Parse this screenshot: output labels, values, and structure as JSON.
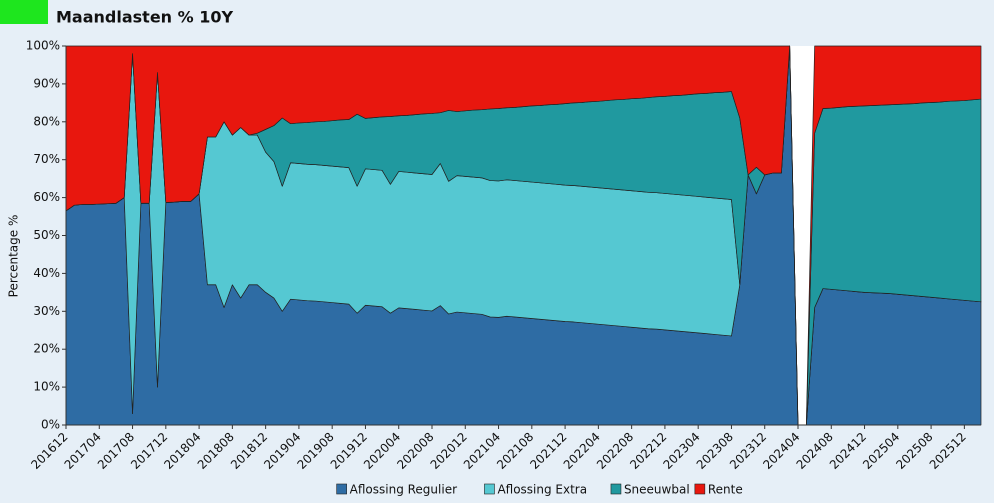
{
  "chart_data": {
    "type": "stacked_area",
    "title": "Maandlasten % 10Y",
    "ylabel": "Percentage %",
    "categories": [
      "201612",
      null,
      null,
      null,
      "201704",
      null,
      null,
      null,
      "201708",
      null,
      null,
      null,
      "201712",
      null,
      null,
      null,
      "201804",
      null,
      null,
      null,
      "201808",
      null,
      null,
      null,
      "201812",
      null,
      null,
      null,
      "201904",
      null,
      null,
      null,
      "201908",
      null,
      null,
      null,
      "201912",
      null,
      null,
      null,
      "202004",
      null,
      null,
      null,
      "202008",
      null,
      null,
      null,
      "202012",
      null,
      null,
      null,
      "202104",
      null,
      null,
      null,
      "202108",
      null,
      null,
      null,
      "202112",
      null,
      null,
      null,
      "202204",
      null,
      null,
      null,
      "202208",
      null,
      null,
      null,
      "202212",
      null,
      null,
      null,
      "202304",
      null,
      null,
      null,
      "202308",
      null,
      null,
      null,
      "202312",
      null,
      null,
      null,
      "202404",
      null,
      null,
      null,
      "202408",
      null,
      null,
      null,
      "202412",
      null,
      null,
      null,
      "202504",
      null,
      null,
      null,
      "202508",
      null,
      null,
      null,
      "202512",
      null,
      null
    ],
    "series": [
      {
        "name": "Aflossing Regulier",
        "color": "#2e6ca4",
        "values": [
          56.5,
          58,
          58.2,
          58.2,
          58.3,
          58.4,
          58.5,
          60,
          3,
          58.5,
          58.5,
          10,
          58.7,
          58.8,
          59,
          59,
          61,
          37,
          37,
          31,
          37,
          33.5,
          37,
          37,
          35,
          33.5,
          30,
          33.2,
          33.0,
          32.8,
          32.7,
          32.5,
          32.3,
          32.1,
          31.9,
          29.5,
          31.6,
          31.4,
          31.2,
          29.5,
          30.9,
          30.7,
          30.5,
          30.3,
          30.1,
          31.5,
          29.3,
          29.8,
          29.6,
          29.4,
          29.2,
          28.5,
          28.4,
          28.7,
          28.5,
          28.3,
          28.1,
          27.9,
          27.7,
          27.5,
          27.3,
          27.2,
          27.0,
          26.8,
          26.6,
          26.4,
          26.2,
          26.0,
          25.8,
          25.6,
          25.4,
          25.3,
          25.1,
          24.9,
          24.7,
          24.5,
          24.3,
          24.1,
          23.9,
          23.7,
          23.5,
          37,
          66,
          61,
          66,
          66.5,
          66.5,
          100,
          0,
          0,
          31,
          36,
          35.8,
          35.6,
          35.4,
          35.2,
          35.0,
          34.9,
          34.8,
          34.7,
          34.5,
          34.3,
          34.1,
          33.9,
          33.7,
          33.5,
          33.3,
          33.1,
          32.9,
          32.7,
          32.5
        ]
      },
      {
        "name": "Aflossing Extra",
        "color": "#55c8d2",
        "values": [
          0,
          0,
          0,
          0,
          0,
          0,
          0,
          0,
          95,
          0,
          0,
          83,
          0,
          0,
          0,
          0,
          0,
          39,
          39,
          49,
          39.5,
          45,
          39.5,
          39.5,
          37,
          36,
          33,
          36,
          36,
          36,
          36,
          36,
          36,
          36,
          36,
          33.5,
          36,
          36,
          36,
          34,
          36,
          36,
          36,
          36,
          36,
          37.5,
          35,
          36,
          36,
          36,
          36,
          36,
          36,
          36,
          36,
          36,
          36,
          36,
          36,
          36,
          36,
          36,
          36,
          36,
          36,
          36,
          36,
          36,
          36,
          36,
          36,
          36,
          36,
          36,
          36,
          36,
          36,
          36,
          36,
          36,
          36,
          0,
          0,
          0,
          0,
          0,
          0,
          0,
          0,
          0,
          0,
          0,
          0,
          0,
          0,
          0,
          0,
          0,
          0,
          0,
          0,
          0,
          0,
          0,
          0,
          0,
          0,
          0,
          0,
          0,
          0
        ]
      },
      {
        "name": "Sneeuwbal",
        "color": "#20999f",
        "values": [
          0,
          0,
          0,
          0,
          0,
          0,
          0,
          0,
          0,
          0,
          0,
          0,
          0,
          0,
          0,
          0,
          0,
          0,
          0,
          0,
          0,
          0,
          0,
          0.5,
          6,
          9.5,
          18,
          10.3,
          10.7,
          11.0,
          11.3,
          11.6,
          12.0,
          12.4,
          12.7,
          19.0,
          13.3,
          13.7,
          14.1,
          17.9,
          14.7,
          15.0,
          15.4,
          15.8,
          16.1,
          13.4,
          18.7,
          16.9,
          17.3,
          17.7,
          18.0,
          18.9,
          19.1,
          19.0,
          19.3,
          19.7,
          20.1,
          20.4,
          20.8,
          21.1,
          21.5,
          21.8,
          22.1,
          22.5,
          22.8,
          23.2,
          23.6,
          23.9,
          24.3,
          24.6,
          25.0,
          25.3,
          25.6,
          26.0,
          26.3,
          26.7,
          27.1,
          27.4,
          27.8,
          28.1,
          28.5,
          44,
          0,
          7,
          0,
          0,
          0,
          0,
          0,
          0,
          46,
          47.5,
          47.8,
          48.2,
          48.6,
          48.9,
          49.2,
          49.4,
          49.6,
          49.8,
          50.1,
          50.4,
          50.7,
          51.1,
          51.4,
          51.7,
          52.1,
          52.4,
          52.7,
          53.1,
          53.5
        ]
      },
      {
        "name": "Rente",
        "color": "#e8170e",
        "values": [
          43.5,
          42,
          41.8,
          41.8,
          41.7,
          41.6,
          41.5,
          40,
          2,
          41.5,
          41.5,
          7,
          41.3,
          41.2,
          41,
          41,
          39,
          24,
          24,
          20,
          23.5,
          21.5,
          23.5,
          23,
          22,
          21,
          19,
          20.5,
          20.3,
          20.2,
          20.0,
          19.9,
          19.7,
          19.5,
          19.4,
          18.0,
          19.1,
          18.9,
          18.7,
          18.6,
          18.4,
          18.3,
          18.1,
          17.9,
          17.8,
          17.6,
          17.0,
          17.3,
          17.1,
          16.9,
          16.8,
          16.6,
          16.5,
          16.3,
          16.2,
          16.0,
          15.8,
          15.7,
          15.5,
          15.4,
          15.2,
          15.0,
          14.9,
          14.7,
          14.6,
          14.4,
          14.2,
          14.1,
          13.9,
          13.8,
          13.6,
          13.4,
          13.3,
          13.1,
          13.0,
          12.8,
          12.6,
          12.5,
          12.3,
          12.2,
          12.0,
          19,
          34,
          32,
          34,
          33.5,
          33.5,
          0,
          0,
          0,
          23,
          16.5,
          16.4,
          16.2,
          16.0,
          15.9,
          15.8,
          15.7,
          15.6,
          15.5,
          15.4,
          15.3,
          15.2,
          15.0,
          14.9,
          14.8,
          14.6,
          14.5,
          14.4,
          14.2,
          14.0
        ]
      }
    ],
    "ylim": [
      0,
      100
    ],
    "yticks": [
      {
        "value": 0,
        "label": "0%"
      },
      {
        "value": 10,
        "label": "10%"
      },
      {
        "value": 20,
        "label": "20%"
      },
      {
        "value": 30,
        "label": "30%"
      },
      {
        "value": 40,
        "label": "40%"
      },
      {
        "value": 50,
        "label": "50%"
      },
      {
        "value": 60,
        "label": "60%"
      },
      {
        "value": 70,
        "label": "70%"
      },
      {
        "value": 80,
        "label": "80%"
      },
      {
        "value": 90,
        "label": "90%"
      },
      {
        "value": 100,
        "label": "100%"
      }
    ],
    "legend": "bottom"
  }
}
